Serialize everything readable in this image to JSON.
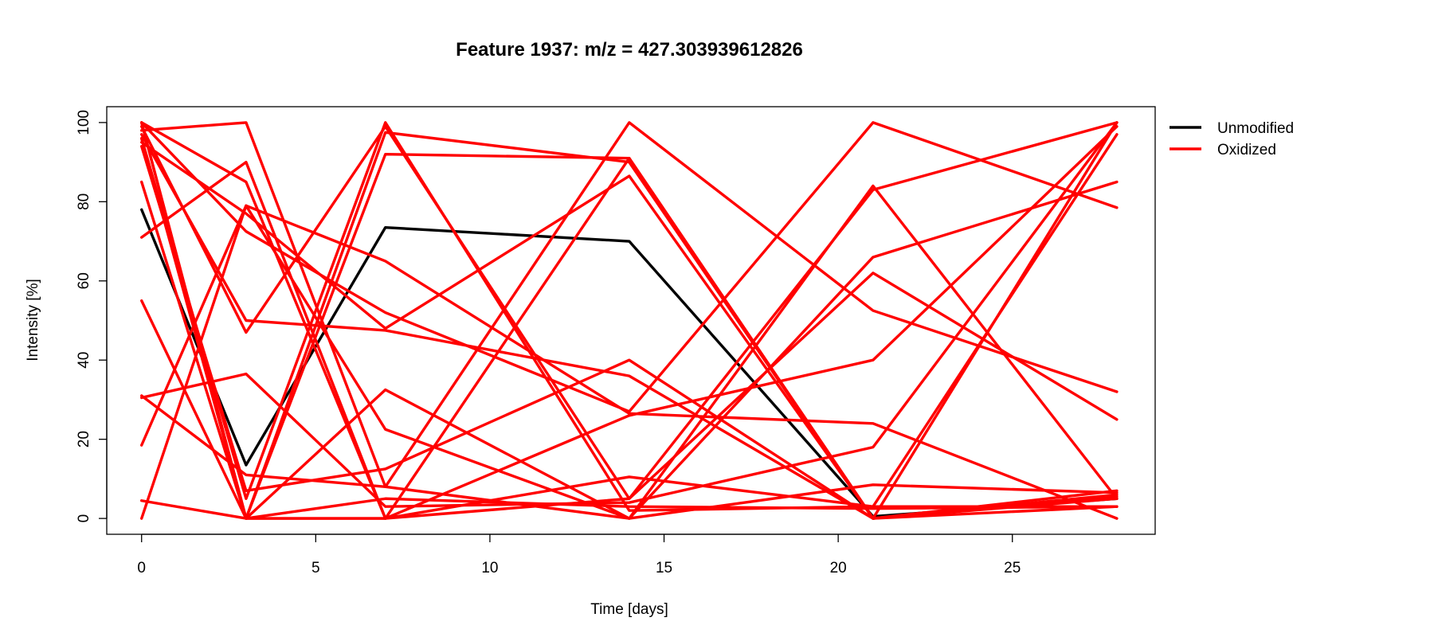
{
  "chart_data": {
    "type": "line",
    "title": "Feature 1937: m/z = 427.303939612826",
    "xlabel": "Time [days]",
    "ylabel": "Intensity [%]",
    "x": [
      0,
      3,
      7,
      14,
      21,
      28
    ],
    "xlim": [
      -1,
      29.1
    ],
    "ylim": [
      -4,
      104
    ],
    "xticks": [
      "0",
      "5",
      "10",
      "15",
      "20",
      "25"
    ],
    "yticks": [
      "0",
      "20",
      "40",
      "60",
      "80",
      "100"
    ],
    "grid": false,
    "legend_position": "top-right, outside plot",
    "legend": [
      {
        "label": "Unmodified",
        "color": "#000000"
      },
      {
        "label": "Oxidized",
        "color": "#ff0000"
      }
    ],
    "series": [
      {
        "group": "Unmodified",
        "color": "#000000",
        "values": [
          78,
          13.5,
          73.5,
          70,
          0.5,
          5
        ]
      },
      {
        "group": "Oxidized",
        "color": "#ff0000",
        "values": [
          100,
          85,
          0,
          91,
          0,
          100
        ]
      },
      {
        "group": "Oxidized",
        "color": "#ff0000",
        "values": [
          98,
          100,
          8,
          0,
          84,
          5
        ]
      },
      {
        "group": "Oxidized",
        "color": "#ff0000",
        "values": [
          96,
          5,
          100,
          2,
          3,
          97
        ]
      },
      {
        "group": "Oxidized",
        "color": "#ff0000",
        "values": [
          85,
          0,
          97.5,
          90,
          0,
          6
        ]
      },
      {
        "group": "Oxidized",
        "color": "#ff0000",
        "values": [
          31,
          11,
          8,
          100,
          52.5,
          32
        ]
      },
      {
        "group": "Oxidized",
        "color": "#ff0000",
        "values": [
          71,
          90,
          0,
          5,
          83,
          100
        ]
      },
      {
        "group": "Oxidized",
        "color": "#ff0000",
        "values": [
          55,
          0,
          92,
          91,
          0,
          7
        ]
      },
      {
        "group": "Oxidized",
        "color": "#ff0000",
        "values": [
          18.5,
          79,
          65,
          26.5,
          24,
          0
        ]
      },
      {
        "group": "Oxidized",
        "color": "#ff0000",
        "values": [
          100,
          72.5,
          52,
          27,
          100,
          78.5
        ]
      },
      {
        "group": "Oxidized",
        "color": "#ff0000",
        "values": [
          99,
          47,
          99,
          5,
          62,
          25
        ]
      },
      {
        "group": "Oxidized",
        "color": "#ff0000",
        "values": [
          97,
          50,
          47.5,
          36,
          0,
          5
        ]
      },
      {
        "group": "Oxidized",
        "color": "#ff0000",
        "values": [
          95,
          77,
          48,
          86.5,
          0,
          3
        ]
      },
      {
        "group": "Oxidized",
        "color": "#ff0000",
        "values": [
          100,
          0,
          32.5,
          0,
          66,
          85
        ]
      },
      {
        "group": "Oxidized",
        "color": "#ff0000",
        "values": [
          30.5,
          36.5,
          3,
          4,
          18,
          100
        ]
      },
      {
        "group": "Oxidized",
        "color": "#ff0000",
        "values": [
          94,
          7,
          12.5,
          40,
          0,
          5.5
        ]
      },
      {
        "group": "Oxidized",
        "color": "#ff0000",
        "values": [
          0,
          79,
          22.5,
          0,
          8.5,
          6.5
        ]
      },
      {
        "group": "Oxidized",
        "color": "#ff0000",
        "values": [
          4.5,
          0,
          0,
          26,
          40,
          99
        ]
      },
      {
        "group": "Oxidized",
        "color": "#ff0000",
        "values": [
          96,
          0,
          0,
          10.5,
          3,
          3
        ]
      },
      {
        "group": "Oxidized",
        "color": "#ff0000",
        "values": [
          100,
          0,
          5,
          3,
          2.5,
          3
        ]
      }
    ]
  }
}
